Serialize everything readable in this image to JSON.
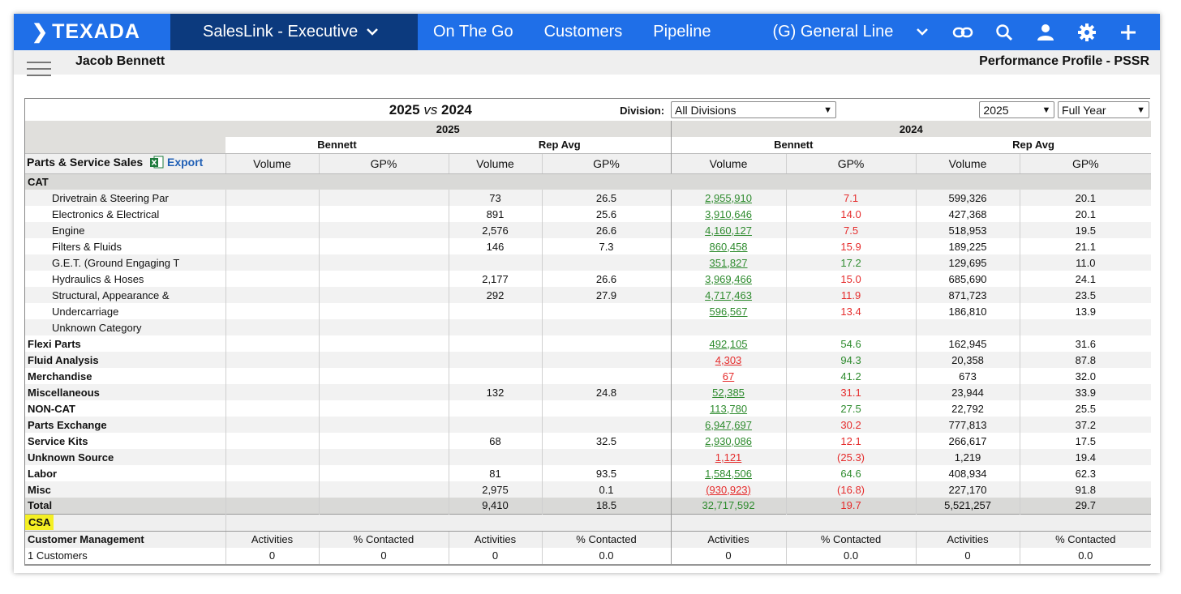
{
  "nav": {
    "logo": "TEXADA",
    "app_select": "SalesLink - Executive",
    "links": [
      "On The Go",
      "Customers",
      "Pipeline"
    ],
    "line_select": "(G) General Line",
    "icons": [
      "link-icon",
      "search-icon",
      "user-icon",
      "gear-icon",
      "plus-icon"
    ]
  },
  "subheader": {
    "user": "Jacob Bennett",
    "profile": "Performance Profile - PSSR"
  },
  "filters": {
    "title_year_a": "2025",
    "title_vs": "vs",
    "title_year_b": "2024",
    "division_label": "Division:",
    "division_value": "All Divisions",
    "year_value": "2025",
    "period_value": "Full Year"
  },
  "headers": {
    "year_a": "2025",
    "year_b": "2024",
    "rep": "Bennett",
    "avg": "Rep Avg",
    "section": "Parts & Service Sales",
    "export": "Export",
    "volume": "Volume",
    "gp": "GP%"
  },
  "cat_label": "CAT",
  "cat_rows": [
    {
      "name": "Drivetrain & Steering Par",
      "a_vol": "",
      "a_gp": "",
      "ra_vol": "73",
      "ra_gp": "26.5",
      "b_vol": "2,955,910",
      "b_vol_c": "g",
      "b_gp": "7.1",
      "b_gp_c": "r",
      "rb_vol": "599,326",
      "rb_gp": "20.1"
    },
    {
      "name": "Electronics & Electrical",
      "a_vol": "",
      "a_gp": "",
      "ra_vol": "891",
      "ra_gp": "25.6",
      "b_vol": "3,910,646",
      "b_vol_c": "g",
      "b_gp": "14.0",
      "b_gp_c": "r",
      "rb_vol": "427,368",
      "rb_gp": "20.1"
    },
    {
      "name": "Engine",
      "a_vol": "",
      "a_gp": "",
      "ra_vol": "2,576",
      "ra_gp": "26.6",
      "b_vol": "4,160,127",
      "b_vol_c": "g",
      "b_gp": "7.5",
      "b_gp_c": "r",
      "rb_vol": "518,953",
      "rb_gp": "19.5"
    },
    {
      "name": "Filters & Fluids",
      "a_vol": "",
      "a_gp": "",
      "ra_vol": "146",
      "ra_gp": "7.3",
      "b_vol": "860,458",
      "b_vol_c": "g",
      "b_gp": "15.9",
      "b_gp_c": "r",
      "rb_vol": "189,225",
      "rb_gp": "21.1"
    },
    {
      "name": "G.E.T. (Ground Engaging T",
      "a_vol": "",
      "a_gp": "",
      "ra_vol": "",
      "ra_gp": "",
      "b_vol": "351,827",
      "b_vol_c": "g",
      "b_gp": "17.2",
      "b_gp_c": "g",
      "rb_vol": "129,695",
      "rb_gp": "11.0"
    },
    {
      "name": "Hydraulics & Hoses",
      "a_vol": "",
      "a_gp": "",
      "ra_vol": "2,177",
      "ra_gp": "26.6",
      "b_vol": "3,969,466",
      "b_vol_c": "g",
      "b_gp": "15.0",
      "b_gp_c": "r",
      "rb_vol": "685,690",
      "rb_gp": "24.1"
    },
    {
      "name": "Structural, Appearance &",
      "a_vol": "",
      "a_gp": "",
      "ra_vol": "292",
      "ra_gp": "27.9",
      "b_vol": "4,717,463",
      "b_vol_c": "g",
      "b_gp": "11.9",
      "b_gp_c": "r",
      "rb_vol": "871,723",
      "rb_gp": "23.5"
    },
    {
      "name": "Undercarriage",
      "a_vol": "",
      "a_gp": "",
      "ra_vol": "",
      "ra_gp": "",
      "b_vol": "596,567",
      "b_vol_c": "g",
      "b_gp": "13.4",
      "b_gp_c": "r",
      "rb_vol": "186,810",
      "rb_gp": "13.9"
    },
    {
      "name": "Unknown Category",
      "a_vol": "",
      "a_gp": "",
      "ra_vol": "",
      "ra_gp": "",
      "b_vol": "",
      "b_vol_c": "g",
      "b_gp": "",
      "b_gp_c": "g",
      "rb_vol": "",
      "rb_gp": ""
    }
  ],
  "main_rows": [
    {
      "name": "Flexi Parts",
      "ra_vol": "",
      "ra_gp": "",
      "b_vol": "492,105",
      "b_vol_c": "g",
      "b_gp": "54.6",
      "b_gp_c": "g",
      "rb_vol": "162,945",
      "rb_gp": "31.6"
    },
    {
      "name": "Fluid Analysis",
      "ra_vol": "",
      "ra_gp": "",
      "b_vol": "4,303",
      "b_vol_c": "r",
      "b_gp": "94.3",
      "b_gp_c": "g",
      "rb_vol": "20,358",
      "rb_gp": "87.8"
    },
    {
      "name": "Merchandise",
      "ra_vol": "",
      "ra_gp": "",
      "b_vol": "67",
      "b_vol_c": "r",
      "b_gp": "41.2",
      "b_gp_c": "g",
      "rb_vol": "673",
      "rb_gp": "32.0"
    },
    {
      "name": "Miscellaneous",
      "ra_vol": "132",
      "ra_gp": "24.8",
      "b_vol": "52,385",
      "b_vol_c": "g",
      "b_gp": "31.1",
      "b_gp_c": "r",
      "rb_vol": "23,944",
      "rb_gp": "33.9"
    },
    {
      "name": "NON-CAT",
      "ra_vol": "",
      "ra_gp": "",
      "b_vol": "113,780",
      "b_vol_c": "g",
      "b_gp": "27.5",
      "b_gp_c": "g",
      "rb_vol": "22,792",
      "rb_gp": "25.5"
    },
    {
      "name": "Parts Exchange",
      "ra_vol": "",
      "ra_gp": "",
      "b_vol": "6,947,697",
      "b_vol_c": "g",
      "b_gp": "30.2",
      "b_gp_c": "r",
      "rb_vol": "777,813",
      "rb_gp": "37.2"
    },
    {
      "name": "Service Kits",
      "ra_vol": "68",
      "ra_gp": "32.5",
      "b_vol": "2,930,086",
      "b_vol_c": "g",
      "b_gp": "12.1",
      "b_gp_c": "r",
      "rb_vol": "266,617",
      "rb_gp": "17.5"
    },
    {
      "name": "Unknown Source",
      "ra_vol": "",
      "ra_gp": "",
      "b_vol": "1,121",
      "b_vol_c": "r",
      "b_gp": "(25.3)",
      "b_gp_c": "r",
      "rb_vol": "1,219",
      "rb_gp": "19.4"
    },
    {
      "name": "Labor",
      "ra_vol": "81",
      "ra_gp": "93.5",
      "b_vol": "1,584,506",
      "b_vol_c": "g",
      "b_gp": "64.6",
      "b_gp_c": "g",
      "rb_vol": "408,934",
      "rb_gp": "62.3"
    },
    {
      "name": "Misc",
      "ra_vol": "2,975",
      "ra_gp": "0.1",
      "b_vol": "(930,923)",
      "b_vol_c": "r",
      "b_gp": "(16.8)",
      "b_gp_c": "r",
      "rb_vol": "227,170",
      "rb_gp": "91.8"
    }
  ],
  "total": {
    "name": "Total",
    "ra_vol": "9,410",
    "ra_gp": "18.5",
    "b_vol": "32,717,592",
    "b_gp": "19.7",
    "rb_vol": "5,521,257",
    "rb_gp": "29.7"
  },
  "csa": {
    "badge": "CSA",
    "section": "Customer Management",
    "activities": "Activities",
    "contacted": "% Contacted",
    "row_label": "1 Customers",
    "values": [
      "0",
      "0",
      "0",
      "0.0",
      "0",
      "0.0",
      "0",
      "0.0"
    ]
  },
  "colors": {
    "nav_blue": "#1f6fe8",
    "nav_dark": "#0c3a7e",
    "green": "#2e8b2e",
    "red": "#e52b2b",
    "highlight": "#f4ef24"
  }
}
